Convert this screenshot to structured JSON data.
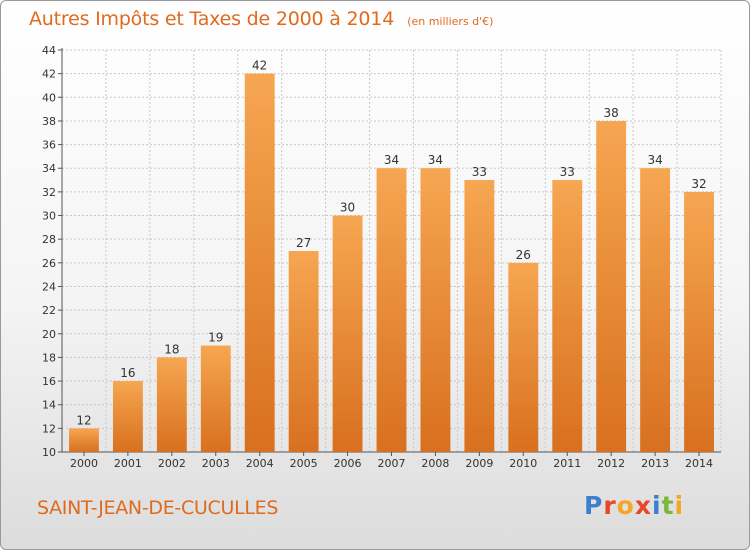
{
  "title": "Autres Impôts et Taxes de 2000 à 2014",
  "unit_note": "(en milliers d'€)",
  "commune": "SAINT-JEAN-DE-CUCULLES",
  "logo": {
    "letters": [
      "P",
      "r",
      "o",
      "x",
      "i",
      "t",
      "i"
    ],
    "colors": [
      "#3a7fd0",
      "#e8452a",
      "#f5a623",
      "#e8452a",
      "#3a7fd0",
      "#7bb83a",
      "#f5a623"
    ]
  },
  "colors": {
    "bar_top": "#f6a651",
    "bar_bottom": "#d8701f",
    "accent": "#e06a1e",
    "grid": "#c8c8c8"
  },
  "chart_data": {
    "type": "bar",
    "categories": [
      "2000",
      "2001",
      "2002",
      "2003",
      "2004",
      "2005",
      "2006",
      "2007",
      "2008",
      "2009",
      "2010",
      "2011",
      "2012",
      "2013",
      "2014"
    ],
    "values": [
      12,
      16,
      18,
      19,
      42,
      27,
      30,
      34,
      34,
      33,
      26,
      33,
      38,
      34,
      32
    ],
    "ylim": [
      10,
      44
    ],
    "yticks": [
      10,
      12,
      14,
      16,
      18,
      20,
      22,
      24,
      26,
      28,
      30,
      32,
      34,
      36,
      38,
      40,
      42,
      44
    ],
    "grid": "horizontal dotted",
    "legend": "none",
    "data_labels": true
  }
}
